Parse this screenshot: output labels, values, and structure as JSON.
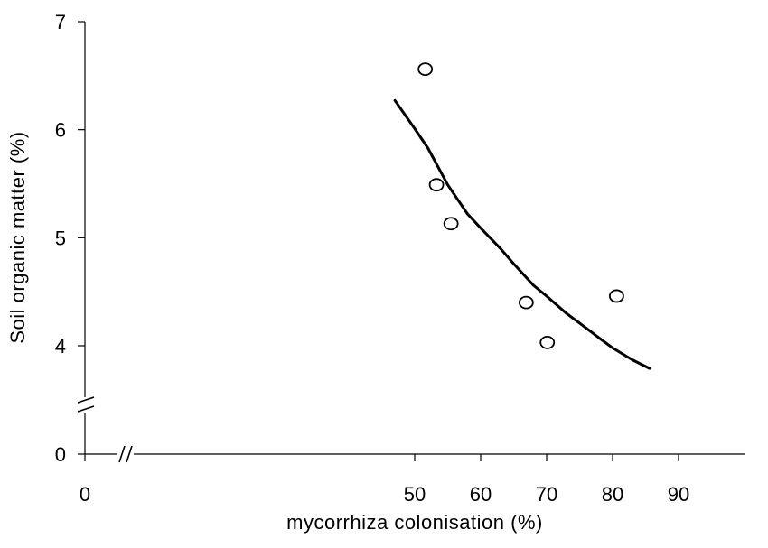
{
  "chart_data": {
    "type": "scatter",
    "xlabel": "mycorrhiza colonisation (%)",
    "ylabel": "Soil organic matter (%)",
    "x_ticks": [
      {
        "value": 0,
        "label": "0"
      },
      {
        "value": 50,
        "label": "50"
      },
      {
        "value": 60,
        "label": "60"
      },
      {
        "value": 70,
        "label": "70"
      },
      {
        "value": 80,
        "label": "80"
      },
      {
        "value": 90,
        "label": "90"
      }
    ],
    "y_ticks": [
      {
        "value": 0,
        "label": "0"
      },
      {
        "value": 4,
        "label": "4"
      },
      {
        "value": 5,
        "label": "5"
      },
      {
        "value": 6,
        "label": "6"
      },
      {
        "value": 7,
        "label": "7"
      }
    ],
    "xlim": [
      0,
      90
    ],
    "ylim": [
      0,
      7
    ],
    "x_axis_break": true,
    "y_axis_break": true,
    "grid": false,
    "series": [
      {
        "type": "scatter",
        "marker": "open-circle",
        "points": [
          {
            "x": 51.6,
            "y": 6.56
          },
          {
            "x": 53.3,
            "y": 5.49
          },
          {
            "x": 55.5,
            "y": 5.13
          },
          {
            "x": 66.9,
            "y": 4.4
          },
          {
            "x": 70.1,
            "y": 4.03
          },
          {
            "x": 80.6,
            "y": 4.46
          }
        ]
      },
      {
        "type": "line",
        "style": "fitted-curve",
        "points": [
          {
            "x": 47.0,
            "y": 6.27
          },
          {
            "x": 50.0,
            "y": 6.01
          },
          {
            "x": 52.0,
            "y": 5.83
          },
          {
            "x": 55.0,
            "y": 5.49
          },
          {
            "x": 58.0,
            "y": 5.22
          },
          {
            "x": 60.0,
            "y": 5.09
          },
          {
            "x": 63.0,
            "y": 4.9
          },
          {
            "x": 65.0,
            "y": 4.76
          },
          {
            "x": 68.0,
            "y": 4.56
          },
          {
            "x": 70.0,
            "y": 4.46
          },
          {
            "x": 73.0,
            "y": 4.3
          },
          {
            "x": 75.0,
            "y": 4.21
          },
          {
            "x": 78.0,
            "y": 4.07
          },
          {
            "x": 80.0,
            "y": 3.98
          },
          {
            "x": 83.0,
            "y": 3.87
          },
          {
            "x": 85.6,
            "y": 3.79
          }
        ]
      }
    ]
  }
}
